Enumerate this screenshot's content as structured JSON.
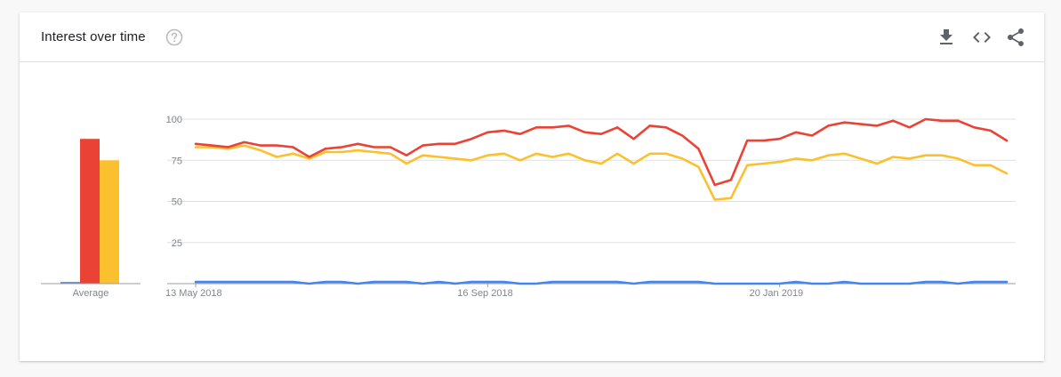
{
  "header": {
    "title": "Interest over time",
    "icons": {
      "help": "help-circle-icon",
      "download": "download-icon",
      "embed": "code-embed-icon",
      "share": "share-icon"
    }
  },
  "chart_data": [
    {
      "type": "bar",
      "categories": [
        "Average"
      ],
      "series": [
        {
          "color": "#4285f4",
          "values": [
            1
          ]
        },
        {
          "color": "#ea4335",
          "values": [
            88
          ]
        },
        {
          "color": "#fbc02d",
          "values": [
            75
          ]
        }
      ],
      "ylim": [
        0,
        100
      ],
      "xlabel": "",
      "ylabel": ""
    },
    {
      "type": "line",
      "x_tick_labels": [
        "13 May 2018",
        "16 Sep 2018",
        "20 Jan 2019"
      ],
      "x_tick_index": [
        0,
        18,
        36
      ],
      "y_ticks": [
        25,
        50,
        75,
        100
      ],
      "ylim": [
        0,
        100
      ],
      "grid": true,
      "series": [
        {
          "color": "#ea4335",
          "values": [
            85,
            84,
            83,
            86,
            84,
            84,
            83,
            77,
            82,
            83,
            85,
            83,
            83,
            78,
            84,
            85,
            85,
            88,
            92,
            93,
            91,
            95,
            95,
            96,
            92,
            91,
            95,
            88,
            96,
            95,
            90,
            82,
            60,
            63,
            87,
            87,
            88,
            92,
            90,
            96,
            98,
            97,
            96,
            99,
            95,
            100,
            99,
            99,
            95,
            93,
            87
          ]
        },
        {
          "color": "#fbc02d",
          "values": [
            83,
            83,
            82,
            84,
            81,
            77,
            79,
            76,
            80,
            80,
            81,
            80,
            79,
            73,
            78,
            77,
            76,
            75,
            78,
            79,
            75,
            79,
            77,
            79,
            75,
            73,
            79,
            73,
            79,
            79,
            76,
            71,
            51,
            52,
            72,
            73,
            74,
            76,
            75,
            78,
            79,
            76,
            73,
            77,
            76,
            78,
            78,
            76,
            72,
            72,
            67
          ]
        },
        {
          "color": "#4285f4",
          "values": [
            1,
            1,
            1,
            1,
            1,
            1,
            1,
            0,
            1,
            1,
            0,
            1,
            1,
            1,
            0,
            1,
            0,
            1,
            1,
            1,
            0,
            0,
            1,
            1,
            1,
            1,
            1,
            0,
            1,
            1,
            1,
            1,
            0,
            0,
            0,
            0,
            0,
            1,
            0,
            0,
            1,
            0,
            0,
            0,
            0,
            1,
            1,
            0,
            1,
            1,
            1
          ]
        }
      ],
      "xlabel": "",
      "ylabel": ""
    }
  ]
}
